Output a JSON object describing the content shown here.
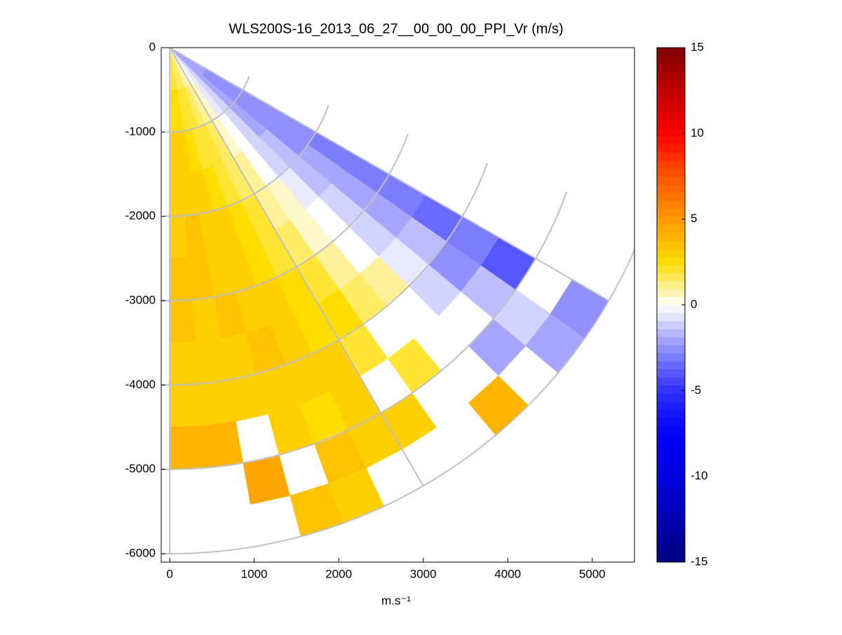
{
  "chart_data": {
    "type": "ppi",
    "title": "WLS200S-16_2013_06_27__00_00_00_PPI_Vr (m/s)",
    "xlabel": "m.s⁻¹",
    "xlim": [
      -100,
      5500
    ],
    "xticks": [
      0,
      1000,
      2000,
      3000,
      4000,
      5000
    ],
    "ylim": [
      -6100,
      0
    ],
    "yticks": [
      0,
      -1000,
      -2000,
      -3000,
      -4000,
      -5000,
      -6000
    ],
    "grid": true,
    "azimuths": [
      177.5,
      172.5,
      167.5,
      162.5,
      157.5,
      152.5,
      147.5,
      142.5,
      137.5,
      132.5,
      127.5,
      122.5
    ],
    "ranges": [
      250,
      750,
      1250,
      1750,
      2250,
      2750,
      3250,
      3750,
      4250,
      4750,
      5250,
      5750
    ],
    "values": [
      [
        2,
        2.5,
        3,
        3,
        3,
        3.5,
        3.5,
        3,
        3,
        4,
        null,
        null
      ],
      [
        2,
        2.5,
        3,
        3,
        3.5,
        3.5,
        3,
        3,
        3,
        4,
        null,
        null
      ],
      [
        1.5,
        2,
        2.5,
        3,
        3,
        3,
        3.5,
        3,
        3,
        null,
        4.5,
        null
      ],
      [
        1.5,
        2,
        2,
        2.5,
        3,
        3,
        3,
        3.5,
        3,
        3,
        null,
        3.5
      ],
      [
        1,
        1.5,
        2,
        2,
        2.5,
        2.5,
        3,
        3,
        3,
        2.5,
        3.5,
        3
      ],
      [
        0.5,
        1,
        1.5,
        1.5,
        2,
        2,
        2.5,
        2.5,
        3,
        3,
        3,
        null
      ],
      [
        0,
        0.5,
        0.5,
        1,
        1,
        1.5,
        2,
        2.5,
        2,
        null,
        3,
        null
      ],
      [
        -0.5,
        -0.5,
        0,
        0,
        0.5,
        0.5,
        1,
        1.5,
        null,
        2,
        null,
        null
      ],
      [
        -1,
        -1,
        -1,
        -1,
        -0.5,
        0,
        0,
        1,
        null,
        null,
        null,
        4
      ],
      [
        -2,
        -2,
        -2,
        -1.5,
        -1.5,
        -1,
        -1,
        -0.5,
        -1,
        null,
        -2,
        null
      ],
      [
        -2,
        -2.5,
        -2.5,
        -2.5,
        -2,
        -2,
        -2,
        -1.5,
        -2.5,
        -1.5,
        -1,
        -2
      ],
      [
        -2,
        -2.5,
        -2.5,
        -2.5,
        -3,
        -3,
        -3,
        -3.5,
        -3,
        -4,
        null,
        -2.5
      ]
    ],
    "clim": [
      -15,
      15
    ],
    "cticks": [
      -15,
      -10,
      -5,
      0,
      5,
      10,
      15
    ],
    "colormap": [
      "#00007f",
      "#0000b0",
      "#0000e0",
      "#0000ff",
      "#3030ff",
      "#9090ff",
      "#ffffff",
      "#ffdd00",
      "#ff9900",
      "#ff5500",
      "#ff0000",
      "#c00000",
      "#7f0000"
    ]
  }
}
